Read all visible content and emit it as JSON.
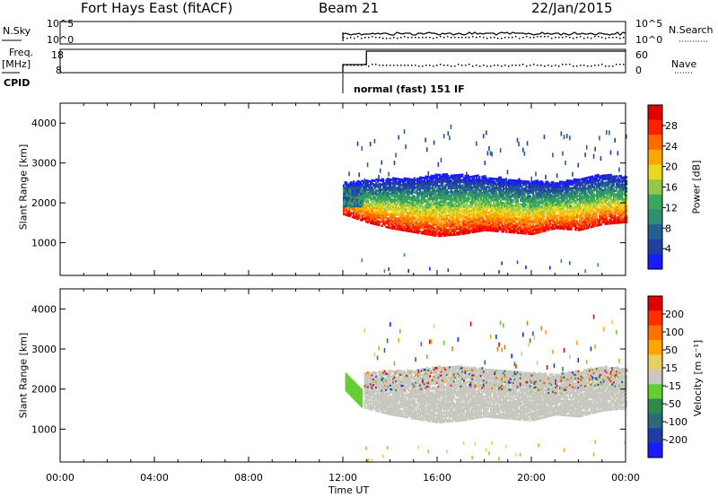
{
  "header": {
    "station": "Fort Hays East (fitACF)",
    "beam": "Beam 21",
    "date": "22/Jan/2015"
  },
  "top_panels": {
    "nsky_label": "N.Sky",
    "nsky_ticks": [
      "10^5",
      "10^0"
    ],
    "nsearch_label": "N.Search",
    "nsearch_ticks": [
      "10^5",
      "10^0"
    ],
    "freq_label": "Freq.",
    "freq_unit": "[MHz]",
    "freq_ticks": [
      "18",
      "8"
    ],
    "nave_label": "Nave",
    "nave_ticks": [
      "60",
      "0"
    ],
    "cpid_label": "CPID",
    "cpid_text": "normal (fast) 151 IF"
  },
  "colors": {
    "power": [
      "#1a1aff",
      "#20409f",
      "#24608f",
      "#2f8f6f",
      "#3aa85a",
      "#8fc84a",
      "#e8d81f",
      "#ffa500",
      "#ff6a00",
      "#ff2000",
      "#e00000"
    ],
    "velocity": [
      "#1a1aff",
      "#1e3ca8",
      "#2a6a7a",
      "#2f8a4a",
      "#66cc33",
      "#c8c8c0",
      "#e8d060",
      "#ffa500",
      "#ff7000",
      "#ff3000",
      "#e00000"
    ]
  },
  "chart_data": [
    {
      "type": "heatmap",
      "name": "power",
      "ylabel": "Slant Range [km]",
      "yticks": [
        "4000",
        "3000",
        "2000",
        "1000"
      ],
      "ylim": [
        180,
        4500
      ],
      "colorbar_label": "Power [dB]",
      "colorbar_ticks": [
        "28",
        "24",
        "20",
        "16",
        "12",
        "8",
        "4"
      ],
      "clim": [
        0,
        30
      ],
      "x_start_hour": 12.0,
      "x_end_hour": 24.0,
      "band": {
        "hours": [
          12,
          13,
          14,
          15,
          16,
          17,
          18,
          19,
          20,
          21,
          22,
          23,
          24
        ],
        "lower_edge_km": [
          1700,
          1500,
          1350,
          1250,
          1150,
          1200,
          1300,
          1250,
          1200,
          1350,
          1300,
          1450,
          1500
        ],
        "upper_edge_km": [
          2500,
          2550,
          2600,
          2600,
          2700,
          2700,
          2650,
          2600,
          2550,
          2500,
          2600,
          2700,
          2650
        ]
      }
    },
    {
      "type": "heatmap",
      "name": "velocity",
      "xlabel": "Time UT",
      "xticks": [
        "00:00",
        "04:00",
        "08:00",
        "12:00",
        "16:00",
        "20:00",
        "00:00"
      ],
      "ylabel": "Slant Range [km]",
      "yticks": [
        "4000",
        "3000",
        "2000",
        "1000"
      ],
      "ylim": [
        180,
        4500
      ],
      "colorbar_label": "Velocity [m s⁻¹]",
      "colorbar_ticks": [
        "200",
        "100",
        "50",
        "15",
        "-15",
        "-50",
        "-100",
        "-200"
      ],
      "clim": [
        -250,
        250
      ]
    }
  ]
}
